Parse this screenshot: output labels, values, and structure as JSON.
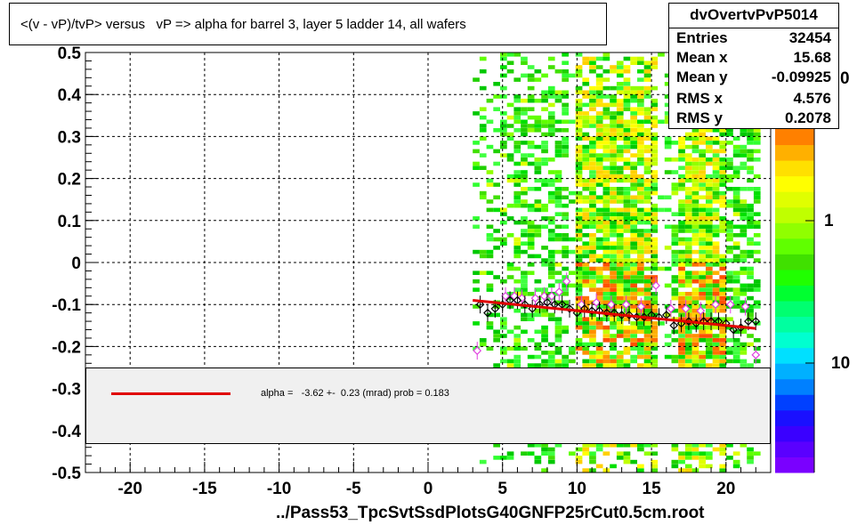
{
  "title": "<(v - vP)/tvP> versus   vP => alpha for barrel 3, layer 5 ladder 14, all wafers",
  "xlabel": "../Pass53_TpcSvtSsdPlotsG40GNFP25rCut0.5cm.root",
  "stats": {
    "name": "dvOvertvPvP5014",
    "rows": [
      {
        "label": "Entries",
        "value": "32454"
      },
      {
        "label": "Mean x",
        "value": "15.68"
      },
      {
        "label": "Mean y",
        "value": "-0.09925"
      },
      {
        "label": "RMS x",
        "value": "4.576"
      },
      {
        "label": "RMS y",
        "value": "0.2078"
      }
    ]
  },
  "legend": {
    "text": "alpha =   -3.62 +-  0.23 (mrad) prob = 0.183",
    "line_color": "#e00000"
  },
  "palette": {
    "labels": [
      "0",
      "1",
      "10"
    ],
    "colors": [
      "#7a00ff",
      "#5a00ff",
      "#3a00ff",
      "#1a10ff",
      "#0040ff",
      "#0080ff",
      "#00b0ff",
      "#00e0ff",
      "#00ffd0",
      "#00ffa0",
      "#00ff70",
      "#00ff30",
      "#20ff00",
      "#40e000",
      "#60ff00",
      "#90ff00",
      "#c0ff00",
      "#e0ff00",
      "#ffff00",
      "#ffe000",
      "#ffb000",
      "#ff8000"
    ]
  },
  "chart_data": {
    "type": "heatmap",
    "xlim": [
      -23,
      23
    ],
    "ylim": [
      -0.5,
      0.5
    ],
    "x_ticks": [
      -20,
      -15,
      -10,
      -5,
      0,
      5,
      10,
      15,
      20
    ],
    "y_ticks": [
      -0.5,
      -0.4,
      -0.3,
      -0.2,
      -0.1,
      0,
      0.1,
      0.2,
      0.3,
      0.4,
      0.5
    ],
    "x_tick_labels": [
      "-20",
      "-15",
      "-10",
      "-5",
      "0",
      "5",
      "10",
      "15",
      "20"
    ],
    "y_tick_labels": [
      "-0.5",
      "-0.4",
      "-0.3",
      "-0.2",
      "-0.1",
      "0",
      "0.1",
      "0.2",
      "0.3",
      "0.4",
      "0.5"
    ],
    "grid": true,
    "occupied_x_range": [
      3,
      22
    ],
    "dense_x_bands": [
      [
        9.9,
        15.3
      ],
      [
        16.8,
        20
      ]
    ],
    "gap_x_bands": [
      [
        9.0,
        9.8
      ],
      [
        15.4,
        16.0
      ]
    ],
    "fit_line": {
      "x": [
        3,
        22
      ],
      "y": [
        -0.09,
        -0.157
      ],
      "color": "#e00000"
    },
    "profile_black": {
      "x": [
        3.5,
        4.0,
        4.5,
        5.0,
        5.5,
        6.0,
        6.5,
        7.0,
        7.5,
        8.0,
        8.5,
        9.0,
        9.5,
        10.0,
        10.5,
        11.0,
        11.5,
        12.0,
        12.5,
        13.0,
        13.5,
        14.0,
        14.5,
        15.0,
        15.5,
        16.0,
        16.5,
        17.0,
        17.5,
        18.0,
        18.5,
        19.0,
        19.5,
        20.0,
        20.5,
        21.0,
        21.5,
        22.0
      ],
      "y": [
        -0.1,
        -0.12,
        -0.11,
        -0.1,
        -0.09,
        -0.09,
        -0.1,
        -0.11,
        -0.1,
        -0.095,
        -0.1,
        -0.1,
        -0.11,
        -0.12,
        -0.11,
        -0.115,
        -0.115,
        -0.12,
        -0.12,
        -0.125,
        -0.125,
        -0.13,
        -0.13,
        -0.125,
        -0.13,
        -0.125,
        -0.15,
        -0.145,
        -0.14,
        -0.145,
        -0.14,
        -0.14,
        -0.14,
        -0.145,
        -0.16,
        -0.155,
        -0.14,
        -0.14
      ]
    },
    "profile_pink": {
      "x": [
        3.3,
        5.2,
        5.8,
        6.3,
        7.2,
        7.8,
        8.3,
        8.8,
        9.3,
        10.3,
        11.3,
        12.3,
        13.3,
        14.3,
        15.3,
        16.3,
        17.3,
        18.3,
        19.3,
        20.3,
        21.3,
        22.0
      ],
      "y": [
        -0.21,
        -0.08,
        -0.08,
        -0.085,
        -0.085,
        -0.08,
        -0.08,
        -0.07,
        -0.045,
        -0.1,
        -0.095,
        -0.1,
        -0.1,
        -0.105,
        -0.055,
        -0.11,
        -0.11,
        -0.115,
        -0.1,
        -0.1,
        -0.105,
        -0.22
      ]
    }
  }
}
